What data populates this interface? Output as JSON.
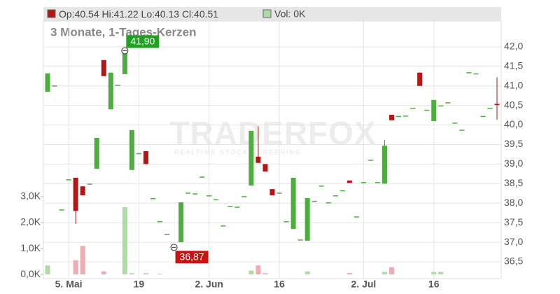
{
  "chart_data": {
    "type": "candlestick",
    "legend": {
      "open": "Op:40.54",
      "high": "Hi:41.22",
      "low": "Lo:40.13",
      "close": "Cl:40.51",
      "volume": "Vol: 0K"
    },
    "title": "3 Monate, 1-Tages-Kerzen",
    "watermark": {
      "brand": "TRADERFOX",
      "tagline": "REALTIME STOCK SCREENING"
    },
    "categories": [
      null,
      null,
      null,
      "5. Mai",
      null,
      null,
      null,
      null,
      null,
      null,
      null,
      null,
      null,
      "19",
      null,
      null,
      null,
      null,
      null,
      null,
      null,
      null,
      null,
      "2. Jun",
      null,
      null,
      null,
      null,
      null,
      null,
      null,
      null,
      null,
      "16",
      null,
      null,
      null,
      null,
      null,
      null,
      null,
      null,
      null,
      null,
      null,
      "2. Jul",
      null,
      null,
      null,
      null,
      null,
      null,
      null,
      null,
      null,
      "16",
      null,
      null,
      null,
      null,
      null,
      null,
      null,
      null,
      null
    ],
    "open": [
      40.85,
      41.01,
      37.84,
      38.61,
      38.65,
      38.43,
      38.5,
      38.88,
      41.66,
      40.4,
      41.03,
      41.3,
      38.85,
      39.28,
      39.33,
      38.13,
      37.54,
      37.21,
      36.9,
      37.0,
      38.27,
      38.25,
      38.68,
      38.2,
      38.1,
      37.43,
      37.93,
      37.91,
      38.18,
      38.45,
      39.19,
      39.0,
      38.36,
      38.27,
      37.54,
      37.34,
      37.07,
      37.04,
      38.06,
      38.45,
      38.02,
      38.2,
      38.33,
      38.58,
      37.66,
      38.54,
      39.11,
      38.54,
      38.5,
      40.26,
      40.23,
      40.24,
      40.44,
      41.34,
      40.39,
      40.1,
      40.5,
      40.58,
      40.06,
      39.88,
      41.35,
      41.32,
      40.23,
      40.44,
      40.54
    ],
    "high": [
      41.32,
      41.01,
      37.84,
      38.61,
      38.65,
      38.43,
      38.5,
      39.67,
      41.66,
      41.34,
      41.03,
      41.9,
      39.87,
      39.28,
      39.33,
      38.13,
      37.54,
      37.21,
      36.9,
      38.02,
      38.27,
      38.25,
      38.68,
      38.2,
      38.1,
      37.43,
      37.93,
      37.91,
      38.18,
      39.85,
      39.97,
      39.0,
      38.36,
      38.27,
      37.54,
      38.65,
      37.07,
      38.13,
      38.06,
      38.45,
      38.02,
      38.2,
      38.33,
      38.58,
      37.66,
      38.54,
      39.11,
      38.54,
      39.62,
      40.26,
      40.23,
      40.24,
      40.44,
      41.34,
      40.39,
      40.64,
      40.5,
      40.58,
      40.06,
      39.88,
      41.35,
      41.32,
      40.23,
      40.44,
      41.22
    ],
    "low": [
      40.85,
      41.01,
      37.84,
      38.61,
      37.47,
      38.2,
      38.5,
      38.88,
      41.25,
      40.4,
      41.03,
      41.3,
      38.85,
      39.28,
      39.0,
      38.13,
      37.54,
      37.21,
      36.87,
      37.0,
      38.27,
      38.25,
      38.68,
      38.2,
      38.1,
      37.43,
      37.93,
      37.91,
      38.18,
      38.45,
      39.03,
      38.81,
      38.2,
      38.27,
      37.54,
      37.34,
      37.07,
      37.04,
      38.06,
      38.45,
      38.02,
      38.2,
      38.33,
      38.52,
      37.66,
      38.54,
      39.11,
      38.54,
      38.5,
      40.12,
      40.23,
      40.24,
      40.44,
      41.0,
      40.39,
      40.1,
      40.5,
      40.58,
      40.06,
      39.88,
      41.35,
      41.32,
      40.23,
      40.44,
      40.13
    ],
    "close": [
      41.32,
      41.01,
      37.84,
      38.61,
      37.8,
      38.2,
      38.5,
      39.67,
      41.25,
      41.34,
      41.03,
      41.9,
      39.87,
      39.28,
      39.0,
      38.13,
      37.54,
      37.21,
      36.9,
      38.02,
      38.27,
      38.25,
      38.68,
      38.2,
      38.1,
      37.43,
      37.93,
      37.91,
      38.18,
      39.85,
      39.03,
      38.81,
      38.2,
      38.27,
      37.54,
      38.65,
      37.07,
      38.13,
      38.06,
      38.45,
      38.02,
      38.2,
      38.33,
      38.52,
      37.66,
      38.54,
      39.11,
      38.54,
      39.47,
      40.12,
      40.23,
      40.24,
      40.44,
      41.0,
      40.39,
      40.64,
      40.5,
      40.58,
      40.06,
      39.88,
      41.35,
      41.32,
      40.23,
      40.44,
      40.51
    ],
    "volume": [
      0.35,
      0,
      0,
      0,
      0.55,
      1.1,
      0,
      0,
      0.12,
      0,
      0,
      2.6,
      0.05,
      0,
      0.05,
      0,
      0.03,
      0,
      0,
      0,
      0,
      0,
      0,
      0,
      0,
      0,
      0,
      0,
      0,
      0.15,
      0.35,
      0.05,
      0,
      0,
      0,
      0,
      0,
      0.12,
      0,
      0,
      0,
      0,
      0,
      0.06,
      0,
      0,
      0,
      0,
      0.1,
      0.28,
      0,
      0,
      0,
      0,
      0,
      0.1,
      0.1,
      0,
      0,
      0,
      0,
      0,
      0,
      0,
      0
    ],
    "up_color": "#4cae3c",
    "down_color": "#b81414",
    "volume_up_color": "#acdca4",
    "volume_down_color": "#f2aab4",
    "ylim": [
      36.07,
      42.66
    ],
    "yticks": [
      {
        "value": 36.5,
        "label": "36,5"
      },
      {
        "value": 37.0,
        "label": "37,0"
      },
      {
        "value": 37.5,
        "label": "37,5"
      },
      {
        "value": 38.0,
        "label": "38,0"
      },
      {
        "value": 38.5,
        "label": "38,5"
      },
      {
        "value": 39.0,
        "label": "39,0"
      },
      {
        "value": 39.5,
        "label": "39,5"
      },
      {
        "value": 40.0,
        "label": "40,0"
      },
      {
        "value": 40.5,
        "label": "40,5"
      },
      {
        "value": 41.0,
        "label": "41,0"
      },
      {
        "value": 41.5,
        "label": "41,5"
      },
      {
        "value": 42.0,
        "label": "42,0"
      }
    ],
    "y2lim": [
      -0.16,
      9.78
    ],
    "y2ticks": [
      {
        "value": 0,
        "label": "0,0K"
      },
      {
        "value": 1,
        "label": "1,0K"
      },
      {
        "value": 2,
        "label": "2,0K"
      },
      {
        "value": 3,
        "label": "3,0K"
      }
    ],
    "annotations": [
      {
        "index": 11,
        "value": 41.9,
        "label": "41,90",
        "color": "#22a022"
      },
      {
        "index": 18,
        "value": 36.87,
        "label": "36,87",
        "color": "#cc1111"
      }
    ],
    "grid": true
  }
}
